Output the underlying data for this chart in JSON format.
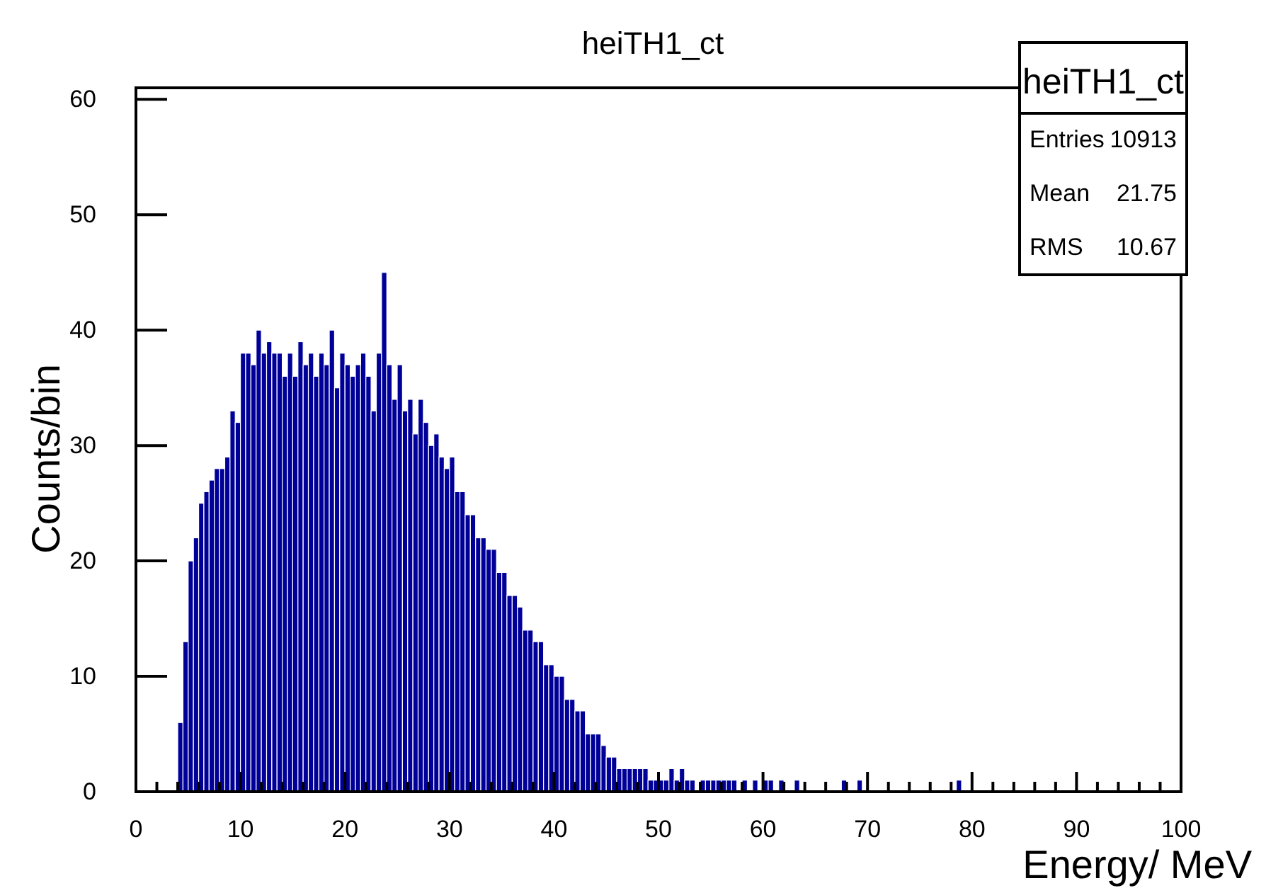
{
  "chart_data": {
    "type": "histogram",
    "title": "heiTH1_ct",
    "xlabel": "Energy/ MeV",
    "ylabel": "Counts/bin",
    "color": "#000099",
    "grid": false,
    "xlim": [
      0,
      100
    ],
    "xticks": [
      0,
      {
        "value": 2,
        "label": null
      },
      {
        "value": 4,
        "label": null
      },
      {
        "value": 6,
        "label": null
      },
      {
        "value": 8,
        "label": null
      },
      10,
      {
        "value": 12,
        "label": null
      },
      {
        "value": 14,
        "label": null
      },
      {
        "value": 16,
        "label": null
      },
      {
        "value": 18,
        "label": null
      },
      20,
      {
        "value": 22,
        "label": null
      },
      {
        "value": 24,
        "label": null
      },
      {
        "value": 26,
        "label": null
      },
      {
        "value": 28,
        "label": null
      },
      30,
      {
        "value": 32,
        "label": null
      },
      {
        "value": 34,
        "label": null
      },
      {
        "value": 36,
        "label": null
      },
      {
        "value": 38,
        "label": null
      },
      40,
      {
        "value": 42,
        "label": null
      },
      {
        "value": 44,
        "label": null
      },
      {
        "value": 46,
        "label": null
      },
      {
        "value": 48,
        "label": null
      },
      50,
      {
        "value": 52,
        "label": null
      },
      {
        "value": 54,
        "label": null
      },
      {
        "value": 56,
        "label": null
      },
      {
        "value": 58,
        "label": null
      },
      60,
      {
        "value": 62,
        "label": null
      },
      {
        "value": 64,
        "label": null
      },
      {
        "value": 66,
        "label": null
      },
      {
        "value": 68,
        "label": null
      },
      70,
      {
        "value": 72,
        "label": null
      },
      {
        "value": 74,
        "label": null
      },
      {
        "value": 76,
        "label": null
      },
      {
        "value": 78,
        "label": null
      },
      80,
      {
        "value": 82,
        "label": null
      },
      {
        "value": 84,
        "label": null
      },
      {
        "value": 86,
        "label": null
      },
      {
        "value": 88,
        "label": null
      },
      90,
      {
        "value": 92,
        "label": null
      },
      {
        "value": 94,
        "label": null
      },
      {
        "value": 96,
        "label": null
      },
      {
        "value": 98,
        "label": null
      },
      100
    ],
    "ylim": [
      0,
      61
    ],
    "yticks": [
      0,
      10,
      20,
      30,
      40,
      50,
      60
    ],
    "annotations": [
      "heiTH1_ct",
      "Entries",
      "10913",
      "Mean",
      "21.75",
      "RMS",
      "10.67"
    ],
    "bins": [
      4,
      4.5,
      5,
      5.5,
      6,
      6.5,
      7,
      7.5,
      8,
      8.5,
      9,
      9.5,
      10,
      10.5,
      11,
      11.5,
      12,
      12.5,
      13,
      13.5,
      14,
      14.5,
      15,
      15.5,
      16,
      16.5,
      17,
      17.5,
      18,
      18.5,
      19,
      19.5,
      20,
      20.5,
      21,
      21.5,
      22,
      22.5,
      23,
      23.5,
      24,
      24.5,
      25,
      25.5,
      26,
      26.5,
      27,
      27.5,
      28,
      28.5,
      29,
      29.5,
      30,
      30.5,
      31,
      31.5,
      32,
      32.5,
      33,
      33.5,
      34,
      34.5,
      35,
      35.5,
      36,
      36.5,
      37,
      37.5,
      38,
      38.5,
      39,
      39.5,
      40,
      40.5,
      41,
      41.5,
      42,
      42.5,
      43,
      43.5,
      44,
      44.5,
      45,
      45.5,
      46,
      46.5,
      47,
      47.5,
      48,
      48.5,
      49,
      49.5,
      50,
      50.5,
      51,
      51.5,
      52,
      52.5,
      53,
      53.5,
      54,
      54.5,
      55,
      55.5,
      56,
      56.5,
      57,
      57.5,
      58,
      58.5,
      59,
      59.5,
      60,
      60.5,
      61,
      61.5,
      62,
      63,
      63.5,
      67.5,
      68,
      69,
      69.5,
      78.5,
      79
    ],
    "values": [
      6,
      13,
      20,
      22,
      25,
      26,
      27,
      28,
      28,
      29,
      33,
      32,
      38,
      38,
      37,
      40,
      38,
      39,
      38,
      38,
      36,
      38,
      36,
      39,
      37,
      38,
      36,
      38,
      37,
      40,
      35,
      38,
      37,
      36,
      37,
      38,
      36,
      33,
      38,
      45,
      37,
      34,
      37,
      33,
      34,
      31,
      34,
      32,
      30,
      31,
      29,
      28,
      29,
      26,
      26,
      24,
      24,
      22,
      22,
      21,
      21,
      19,
      19,
      17,
      17,
      16,
      14,
      14,
      13,
      13,
      11,
      11,
      10,
      10,
      8,
      8,
      7,
      7,
      5,
      5,
      5,
      4,
      3,
      3,
      2,
      2,
      2,
      2,
      2,
      2,
      1,
      1,
      1,
      1,
      2,
      1,
      2,
      1,
      1,
      0,
      1,
      1,
      1,
      1,
      1,
      1,
      1,
      0,
      1,
      0,
      1,
      0,
      1,
      1,
      0,
      1,
      0,
      1,
      0,
      1,
      0,
      1,
      0,
      1
    ]
  }
}
